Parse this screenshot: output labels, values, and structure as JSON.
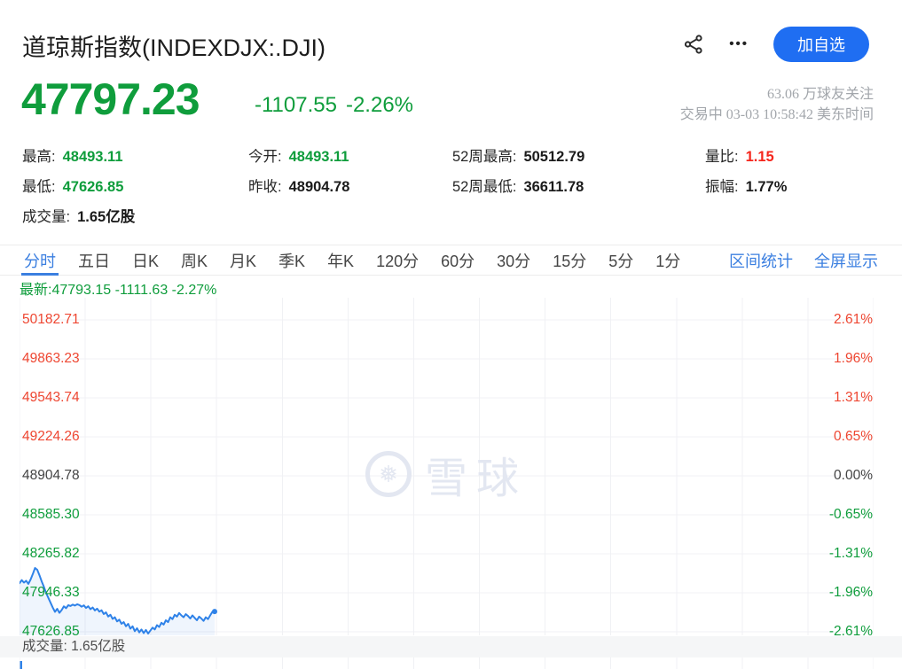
{
  "header": {
    "title": "道琼斯指数(INDEXDJX:.DJI)",
    "more_glyph": "•••",
    "add_watchlist_button": "加自选",
    "price": "47797.23",
    "change": "-1107.55",
    "change_pct": "-2.26%",
    "followers": "63.06 万球友关注",
    "session_status": "交易中 03-03 10:58:42 美东时间"
  },
  "stats": {
    "rows": [
      [
        {
          "label": "最高:",
          "value": "48493.11",
          "color": "green"
        },
        {
          "label": "今开:",
          "value": "48493.11",
          "color": "green"
        },
        {
          "label": "52周最高:",
          "value": "50512.79",
          "color": "dark"
        },
        {
          "label": "量比:",
          "value": "1.15",
          "color": "red"
        }
      ],
      [
        {
          "label": "最低:",
          "value": "47626.85",
          "color": "green"
        },
        {
          "label": "昨收:",
          "value": "48904.78",
          "color": "dark"
        },
        {
          "label": "52周最低:",
          "value": "36611.78",
          "color": "dark"
        },
        {
          "label": "振幅:",
          "value": "1.77%",
          "color": "dark"
        }
      ],
      [
        {
          "label": "成交量:",
          "value": "1.65亿股",
          "color": "dark"
        }
      ]
    ]
  },
  "tabs": {
    "items": [
      "分时",
      "五日",
      "日K",
      "周K",
      "月K",
      "季K",
      "年K",
      "120分",
      "60分",
      "30分",
      "15分",
      "5分",
      "1分"
    ],
    "active_index": 0,
    "right_links": [
      "区间统计",
      "全屏显示"
    ]
  },
  "chart": {
    "latest_label": "最新:47793.15 -1111.63 -2.27%",
    "volume_label": "成交量: 1.65亿股"
  },
  "watermark": {
    "logo_glyph": "❅",
    "text": "雪球"
  },
  "colors": {
    "green": "#0f9d3c",
    "value_red": "#f5261c",
    "axis_red": "#ee4631",
    "axis_neutral": "#444444",
    "link_blue": "#3b7fe0",
    "button_blue": "#1f6ef2",
    "line_blue": "#2f82e8",
    "gridline": "#f0f1f4"
  },
  "chart_data": {
    "type": "line",
    "symbol": "INDEXDJX:.DJI",
    "period": "分时",
    "latest": {
      "price": 47793.15,
      "change": -1111.63,
      "change_pct": "-2.27%"
    },
    "prev_close": 48904.78,
    "day_open": 48493.11,
    "day_high": 48493.11,
    "day_low": 47626.85,
    "axis_left_labels": [
      "50182.71",
      "49863.23",
      "49543.74",
      "49224.26",
      "48904.78",
      "48585.30",
      "48265.82",
      "47946.33",
      "47626.85"
    ],
    "axis_right_labels": [
      "2.61%",
      "1.96%",
      "1.31%",
      "0.65%",
      "0.00%",
      "-0.65%",
      "-1.31%",
      "-1.96%",
      "-2.61%"
    ],
    "y_max": 50182.71,
    "y_min": 47626.85,
    "grid_columns": 13,
    "x_filled_fraction": 0.2285,
    "series": [
      {
        "name": "price",
        "values": [
          48025,
          48050,
          48030,
          48045,
          48020,
          48055,
          48100,
          48150,
          48135,
          48090,
          48040,
          47995,
          47945,
          47905,
          47865,
          47825,
          47790,
          47815,
          47782,
          47805,
          47835,
          47820,
          47845,
          47838,
          47850,
          47842,
          47852,
          47846,
          47832,
          47843,
          47822,
          47836,
          47812,
          47826,
          47802,
          47816,
          47792,
          47803,
          47772,
          47786,
          47752,
          47766,
          47732,
          47746,
          47712,
          47726,
          47692,
          47706,
          47672,
          47692,
          47652,
          47672,
          47632,
          47656,
          47622,
          47646,
          47616,
          47642,
          47612,
          47636,
          47661,
          47646,
          47681,
          47666,
          47701,
          47686,
          47721,
          47706,
          47746,
          47731,
          47766,
          47751,
          47781,
          47761,
          47746,
          47771,
          47756,
          47736,
          47761,
          47741,
          47721,
          47751,
          47736,
          47716,
          47746,
          47731,
          47761,
          47791,
          47793
        ]
      }
    ],
    "volume_total": "1.65亿股"
  }
}
